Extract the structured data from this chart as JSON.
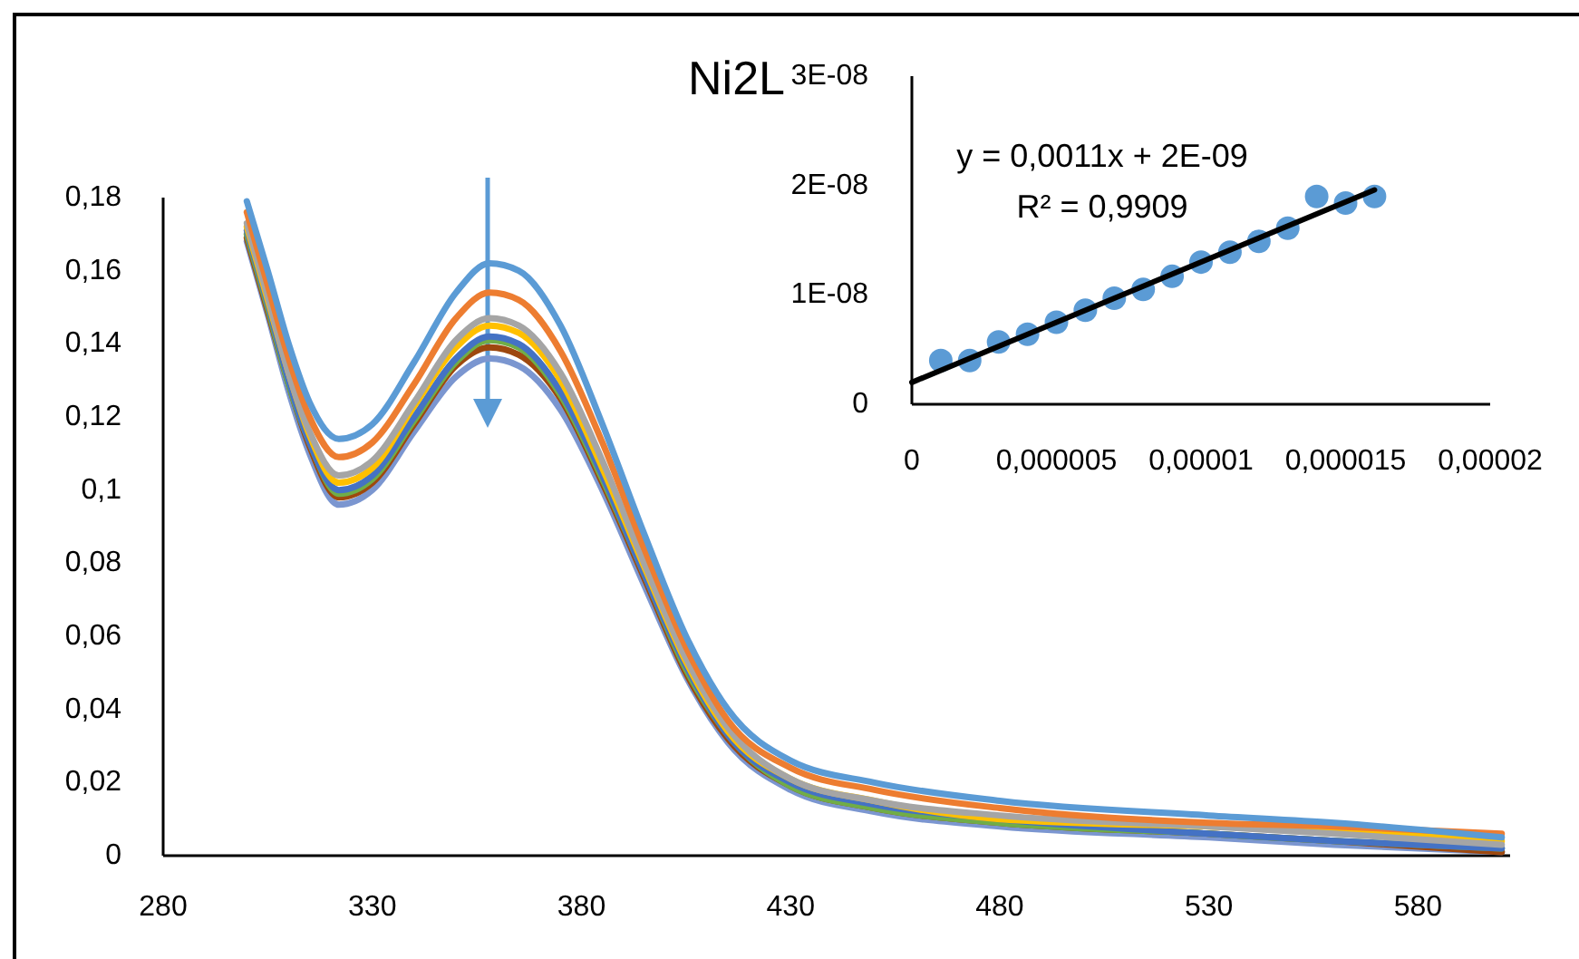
{
  "chart_data": [
    {
      "type": "line",
      "x": [
        300,
        305,
        310,
        315,
        322,
        330,
        340,
        350,
        358,
        365,
        375,
        385,
        395,
        405,
        415,
        430,
        450,
        480,
        530,
        560,
        600
      ],
      "series": [
        {
          "color": "#5b9bd5",
          "values": [
            0.179,
            0.16,
            0.14,
            0.124,
            0.114,
            0.118,
            0.135,
            0.154,
            0.162,
            0.16,
            0.145,
            0.118,
            0.088,
            0.06,
            0.04,
            0.026,
            0.02,
            0.015,
            0.011,
            0.009,
            0.005
          ]
        },
        {
          "color": "#ed7d31",
          "values": [
            0.176,
            0.156,
            0.136,
            0.12,
            0.109,
            0.113,
            0.129,
            0.147,
            0.154,
            0.152,
            0.138,
            0.113,
            0.084,
            0.057,
            0.037,
            0.024,
            0.018,
            0.013,
            0.009,
            0.008,
            0.006
          ]
        },
        {
          "color": "#a5a5a5",
          "values": [
            0.173,
            0.153,
            0.132,
            0.116,
            0.104,
            0.108,
            0.124,
            0.141,
            0.147,
            0.145,
            0.132,
            0.108,
            0.08,
            0.054,
            0.035,
            0.021,
            0.015,
            0.011,
            0.008,
            0.006,
            0.003
          ]
        },
        {
          "color": "#ffc000",
          "values": [
            0.172,
            0.152,
            0.132,
            0.115,
            0.102,
            0.106,
            0.123,
            0.139,
            0.145,
            0.143,
            0.13,
            0.106,
            0.079,
            0.053,
            0.034,
            0.021,
            0.015,
            0.01,
            0.008,
            0.007,
            0.004
          ]
        },
        {
          "color": "#4472c4",
          "values": [
            0.171,
            0.151,
            0.13,
            0.113,
            0.1,
            0.104,
            0.12,
            0.136,
            0.142,
            0.14,
            0.127,
            0.104,
            0.077,
            0.052,
            0.033,
            0.02,
            0.014,
            0.01,
            0.006,
            0.004,
            0.002
          ]
        },
        {
          "color": "#70ad47",
          "values": [
            0.17,
            0.15,
            0.129,
            0.113,
            0.099,
            0.103,
            0.119,
            0.135,
            0.141,
            0.139,
            0.126,
            0.103,
            0.077,
            0.051,
            0.033,
            0.019,
            0.013,
            0.009,
            0.006,
            0.004,
            0.002
          ]
        },
        {
          "color": "#9e480e",
          "values": [
            0.169,
            0.149,
            0.129,
            0.112,
            0.098,
            0.102,
            0.118,
            0.134,
            0.139,
            0.137,
            0.125,
            0.102,
            0.076,
            0.05,
            0.032,
            0.019,
            0.013,
            0.009,
            0.006,
            0.004,
            0.001
          ]
        },
        {
          "color": "#7b96d0",
          "values": [
            0.168,
            0.148,
            0.127,
            0.11,
            0.096,
            0.1,
            0.116,
            0.131,
            0.136,
            0.134,
            0.122,
            0.1,
            0.074,
            0.049,
            0.031,
            0.018,
            0.012,
            0.008,
            0.005,
            0.003,
            0.001
          ]
        }
      ],
      "xlim": [
        280,
        602
      ],
      "xticks": [
        280,
        330,
        380,
        430,
        480,
        530,
        580
      ],
      "ylim": [
        0,
        0.18
      ],
      "yticks": [
        0,
        {
          "value": 0.02,
          "label": "0,02"
        },
        {
          "value": 0.04,
          "label": "0,04"
        },
        {
          "value": 0.06,
          "label": "0,06"
        },
        {
          "value": 0.08,
          "label": "0,08"
        },
        {
          "value": 0.1,
          "label": "0,1"
        },
        {
          "value": 0.12,
          "label": "0,12"
        },
        {
          "value": 0.14,
          "label": "0,14"
        },
        {
          "value": 0.16,
          "label": "0,16"
        },
        {
          "value": 0.18,
          "label": "0,18"
        }
      ],
      "marker": "none",
      "line_style": "solid"
    },
    {
      "type": "scatter",
      "title": "Ni2L",
      "series": [
        {
          "color": "#5b9bd5",
          "marker": "circle",
          "x": [
            1e-06,
            2e-06,
            3e-06,
            4e-06,
            5e-06,
            6e-06,
            7e-06,
            8e-06,
            9e-06,
            1e-05,
            1.1e-05,
            1.2e-05,
            1.3e-05,
            1.4e-05,
            1.5e-05,
            1.6e-05
          ],
          "values": [
            4e-09,
            4e-09,
            5.7e-09,
            6.4e-09,
            7.5e-09,
            8.6e-09,
            9.7e-09,
            1.05e-08,
            1.17e-08,
            1.3e-08,
            1.39e-08,
            1.49e-08,
            1.61e-08,
            1.9e-08,
            1.84e-08,
            1.9e-08
          ]
        },
        {
          "type": "line",
          "color": "#000000",
          "x": [
            0,
            1.6e-05
          ],
          "values": [
            2e-09,
            1.96e-08
          ]
        }
      ],
      "xlim": [
        0,
        2e-05
      ],
      "xticks": [
        0,
        {
          "value": 5e-06,
          "label": "0,000005"
        },
        {
          "value": 1e-05,
          "label": "0,00001"
        },
        {
          "value": 1.5e-05,
          "label": "0,000015"
        },
        {
          "value": 2e-05,
          "label": "0,00002"
        }
      ],
      "ylim": [
        0,
        3e-08
      ],
      "yticks": [
        0,
        {
          "value": 1e-08,
          "label": "1E-08"
        },
        {
          "value": 2e-08,
          "label": "2E-08"
        },
        {
          "value": 3e-08,
          "label": "3E-08"
        }
      ],
      "annotations": [
        "y = 0,0011x + 2E-09",
        "R² = 0,9909"
      ]
    }
  ]
}
